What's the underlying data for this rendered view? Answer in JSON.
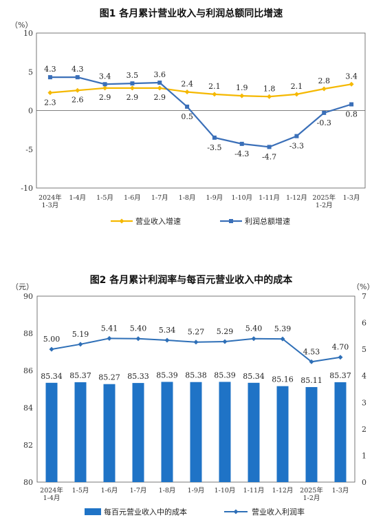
{
  "chart_data": [
    {
      "type": "line",
      "title": "图1  各月累计营业收入与利润总额同比增速",
      "ylabel_unit": "（%）",
      "ylim": [
        -10,
        10
      ],
      "yticks": [
        "10",
        "5",
        "0",
        "-5",
        "-10"
      ],
      "categories": [
        "2024年|1-3月",
        "1-4月",
        "1-5月",
        "1-6月",
        "1-7月",
        "1-8月",
        "1-9月",
        "1-10月",
        "1-11月",
        "1-12月",
        "2025年|1-2月",
        "1-3月"
      ],
      "series": [
        {
          "name": "营业收入增速",
          "color": "#F5B800",
          "marker": "diamond",
          "values": [
            2.3,
            2.6,
            2.9,
            2.9,
            2.9,
            2.4,
            2.1,
            1.9,
            1.8,
            2.1,
            2.8,
            3.4
          ],
          "labels": [
            "2.3",
            "2.6",
            "2.9",
            "2.9",
            "2.9",
            "2.4",
            "2.1",
            "1.9",
            "1.8",
            "2.1",
            "2.8",
            "3.4"
          ]
        },
        {
          "name": "利润总额增速",
          "color": "#3A6FB8",
          "marker": "square",
          "values": [
            4.3,
            4.3,
            3.4,
            3.5,
            3.6,
            0.5,
            -3.5,
            -4.3,
            -4.7,
            -3.3,
            -0.3,
            0.8
          ],
          "labels": [
            "4.3",
            "4.3",
            "3.4",
            "3.5",
            "3.6",
            "0.5",
            "-3.5",
            "-4.3",
            "-4.7",
            "-3.3",
            "-0.3",
            "0.8"
          ]
        }
      ],
      "legend_position": "bottom"
    },
    {
      "type": "bar+line",
      "title": "图2  各月累计利润率与每百元营业收入中的成本",
      "left_unit": "（元）",
      "right_unit": "（%）",
      "left_ylim": [
        80,
        90
      ],
      "left_yticks": [
        "90",
        "88",
        "86",
        "84",
        "82",
        "80"
      ],
      "right_ylim": [
        0,
        7
      ],
      "right_yticks": [
        "7",
        "6",
        "5",
        "4",
        "3",
        "2",
        "1",
        "0"
      ],
      "categories": [
        "2024年|1-4月",
        "1-5月",
        "1-6月",
        "1-7月",
        "1-8月",
        "1-9月",
        "1-10月",
        "1-11月",
        "1-12月",
        "2025年|1-2月",
        "1-3月"
      ],
      "series": [
        {
          "name": "每百元营业收入中的成本",
          "type": "bar",
          "axis": "left",
          "color": "#1F73C6",
          "values": [
            85.34,
            85.37,
            85.27,
            85.33,
            85.39,
            85.38,
            85.39,
            85.34,
            85.16,
            85.11,
            85.37
          ],
          "labels": [
            "85.34",
            "85.37",
            "85.27",
            "85.33",
            "85.39",
            "85.38",
            "85.39",
            "85.34",
            "85.16",
            "85.11",
            "85.37"
          ]
        },
        {
          "name": "营业收入利润率",
          "type": "line",
          "axis": "right",
          "color": "#2E6FB7",
          "marker": "diamond",
          "values": [
            5.0,
            5.19,
            5.41,
            5.4,
            5.34,
            5.27,
            5.29,
            5.4,
            5.39,
            4.53,
            4.7
          ],
          "labels": [
            "5.00",
            "5.19",
            "5.41",
            "5.40",
            "5.34",
            "5.27",
            "5.29",
            "5.40",
            "5.39",
            "4.53",
            "4.70"
          ]
        }
      ],
      "legend_position": "bottom"
    }
  ]
}
